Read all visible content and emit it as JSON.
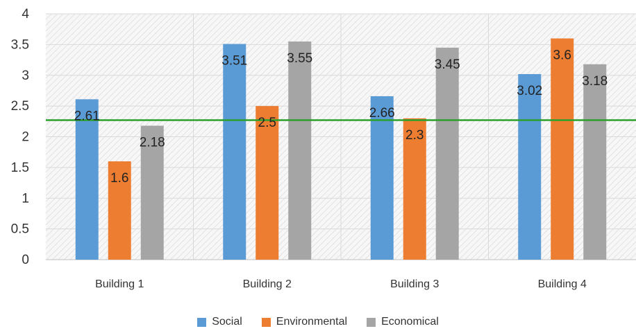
{
  "chart_data": {
    "type": "bar",
    "categories": [
      "Building 1",
      "Building 2",
      "Building 3",
      "Building 4"
    ],
    "series": [
      {
        "name": "Social",
        "color": "#5b9bd5",
        "values": [
          2.61,
          3.51,
          2.66,
          3.02
        ]
      },
      {
        "name": "Environmental",
        "color": "#ed7d31",
        "values": [
          1.6,
          2.5,
          2.3,
          3.6
        ]
      },
      {
        "name": "Economical",
        "color": "#a5a5a5",
        "values": [
          2.18,
          3.55,
          3.45,
          3.18
        ]
      }
    ],
    "yticks": [
      "0",
      "0.5",
      "1",
      "1.5",
      "2",
      "2.5",
      "3",
      "3.5",
      "4"
    ],
    "ylim": [
      0,
      4
    ],
    "reference_line": {
      "value": 2.27,
      "color": "#2ca02c"
    },
    "grid": true,
    "legend_position": "bottom"
  }
}
